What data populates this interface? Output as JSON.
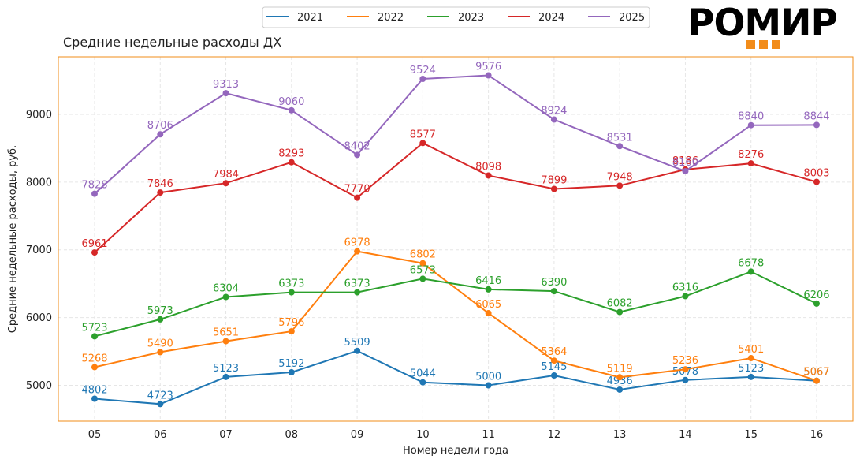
{
  "logo": {
    "text": "РОМИР",
    "accent": "#f28c1a"
  },
  "chart_data": {
    "type": "line",
    "title": "Средние недельные расходы ДХ",
    "xlabel": "Номер недели года",
    "ylabel": "Средние недельные расходы, руб.",
    "categories": [
      "05",
      "06",
      "07",
      "08",
      "09",
      "10",
      "11",
      "12",
      "13",
      "14",
      "15",
      "16"
    ],
    "ylim": [
      4470,
      9850
    ],
    "yticks": [
      5000,
      6000,
      7000,
      8000,
      9000
    ],
    "grid": true,
    "legend": "top-center",
    "frame_color": "#f28c1a",
    "series": [
      {
        "name": "2021",
        "color": "#1f77b4",
        "values": [
          4802,
          4723,
          5123,
          5192,
          5509,
          5044,
          5000,
          5145,
          4936,
          5078,
          5123,
          5067
        ]
      },
      {
        "name": "2022",
        "color": "#ff7f0e",
        "values": [
          5268,
          5490,
          5651,
          5796,
          6978,
          6802,
          6065,
          5364,
          5119,
          5236,
          5401,
          5067
        ]
      },
      {
        "name": "2023",
        "color": "#2ca02c",
        "values": [
          5723,
          5973,
          6304,
          6373,
          6373,
          6573,
          6416,
          6390,
          6082,
          6316,
          6678,
          6206
        ]
      },
      {
        "name": "2024",
        "color": "#d62728",
        "values": [
          6961,
          7846,
          7984,
          8293,
          7770,
          8577,
          8098,
          7899,
          7948,
          8186,
          8276,
          8003
        ]
      },
      {
        "name": "2025",
        "color": "#9467bd",
        "values": [
          7828,
          8706,
          9313,
          9060,
          8402,
          9524,
          9576,
          8924,
          8531,
          8160,
          8840,
          8844
        ]
      }
    ]
  }
}
